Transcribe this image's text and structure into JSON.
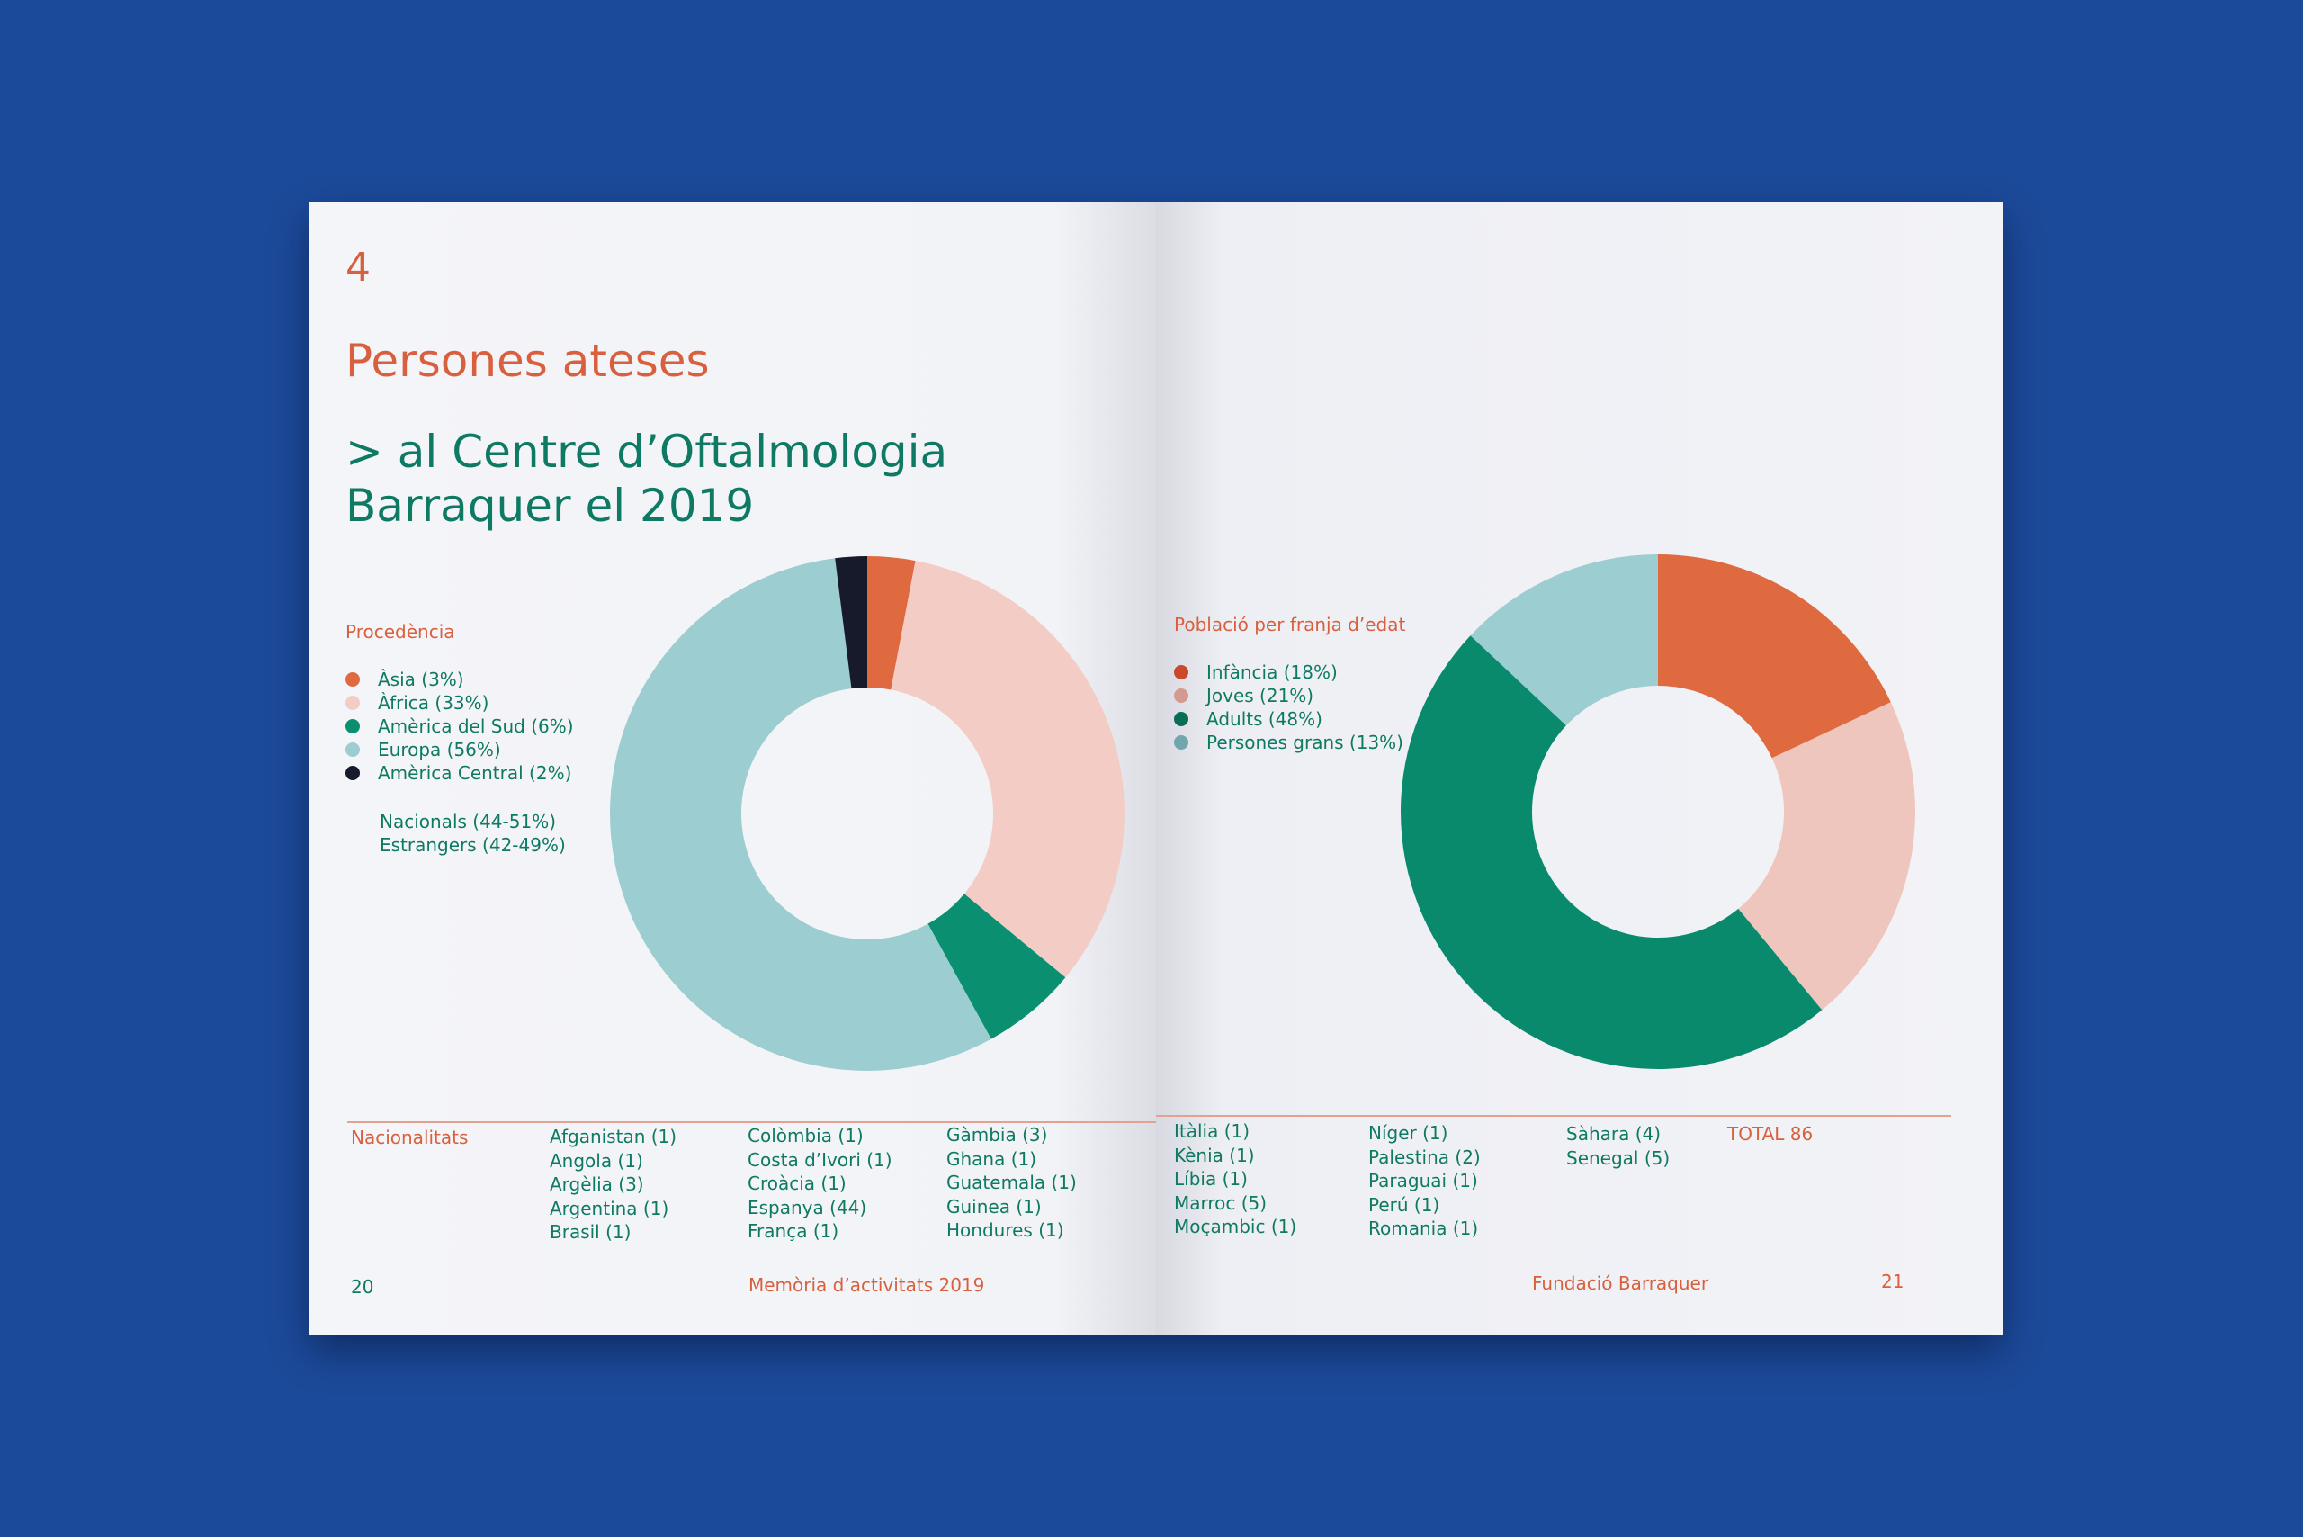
{
  "left_page": {
    "chapter_number": "4",
    "title": "Persones ateses",
    "subtitle": ">  al Centre d’Oftalmologia Barraquer el 2019",
    "legend_title": "Procedència",
    "extra_notes": [
      "Nacionals (44-51%)",
      "Estrangers (42-49%)"
    ],
    "page_number": "20",
    "footer": "Memòria d’activitats 2019"
  },
  "right_page": {
    "legend_title": "Població per franja d’edat",
    "page_number": "21",
    "footer": "Fundació Barraquer"
  },
  "nationalities": {
    "label": "Nacionalitats",
    "total": "TOTAL 86",
    "columns": [
      [
        "Afganistan (1)",
        "Angola (1)",
        "Argèlia (3)",
        "Argentina (1)",
        "Brasil (1)"
      ],
      [
        "Colòmbia (1)",
        "Costa d’Ivori (1)",
        "Croàcia (1)",
        "Espanya (44)",
        "França (1)"
      ],
      [
        "Gàmbia (3)",
        "Ghana (1)",
        "Guatemala (1)",
        "Guinea (1)",
        "Hondures (1)"
      ],
      [
        "Itàlia (1)",
        "Kènia (1)",
        "Líbia (1)",
        "Marroc (5)",
        "Moçambic (1)"
      ],
      [
        "Níger (1)",
        "Palestina (2)",
        "Paraguai (1)",
        "Perú (1)",
        "Romania (1)"
      ],
      [
        "Sàhara (4)",
        "Senegal (5)"
      ]
    ]
  },
  "chart_data": [
    {
      "type": "pie",
      "title": "Procedència",
      "donut": true,
      "categories": [
        "Àsia (3%)",
        "Àfrica (33%)",
        "Amèrica del Sud (6%)",
        "Europa (56%)",
        "Amèrica Central (2%)"
      ],
      "values": [
        3,
        33,
        6,
        56,
        2
      ],
      "colors": [
        "#e06a40",
        "#f3cdc5",
        "#0a8f70",
        "#9ccdd0",
        "#161a2a"
      ]
    },
    {
      "type": "pie",
      "title": "Població per franja d’edat",
      "donut": true,
      "categories": [
        "Infància (18%)",
        "Joves (21%)",
        "Adults (48%)",
        "Persones grans (13%)"
      ],
      "values": [
        18,
        21,
        48,
        13
      ],
      "colors": [
        "#e06a40",
        "#efc6bd",
        "#0a8a6c",
        "#9ccdd0"
      ],
      "legend_colors": [
        "#c94a28",
        "#d49a92",
        "#0a6e56",
        "#6fa7ad"
      ]
    }
  ]
}
